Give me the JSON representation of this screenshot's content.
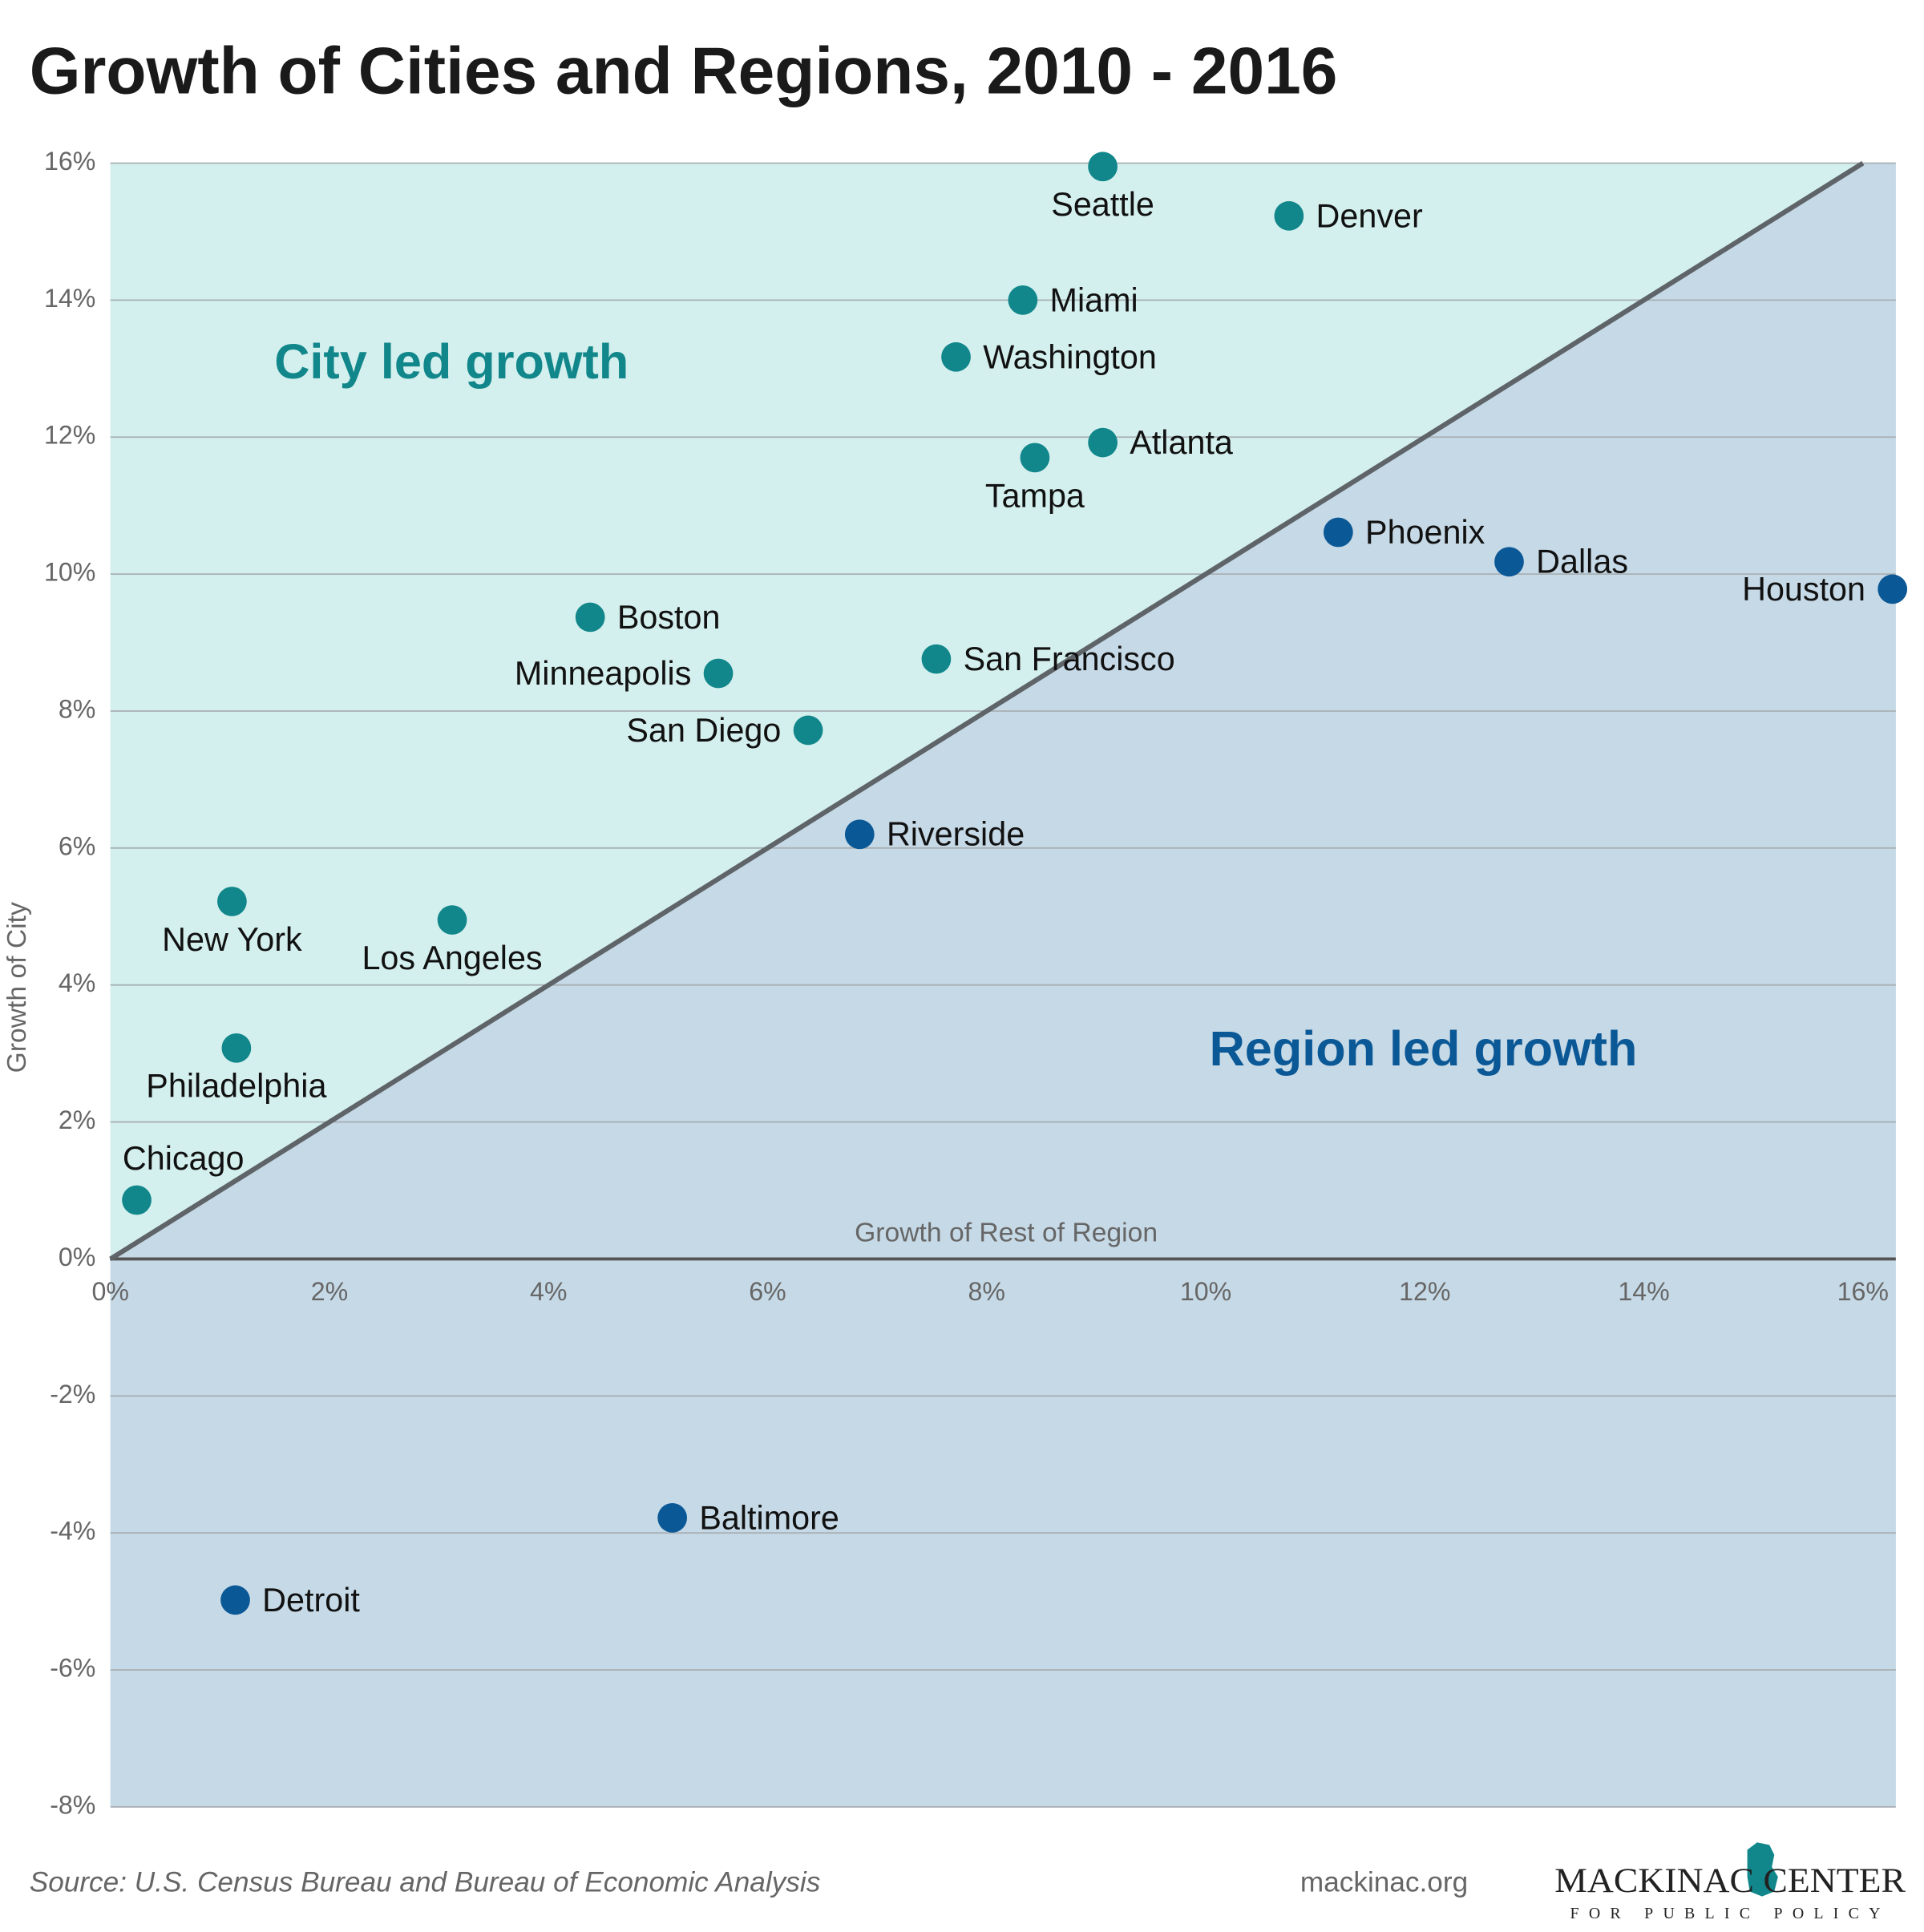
{
  "chart_data": {
    "type": "scatter",
    "title": "Growth of Cities and Regions, 2010 - 2016",
    "x_label": "Growth of Rest of Region",
    "y_label": "Growth of City",
    "source": "Source: U.S. Census Bureau and Bureau of Economic Analysis",
    "website": "mackinac.org",
    "logo": {
      "name": "MACKINAC CENTER",
      "tagline": "FOR PUBLIC POLICY"
    },
    "xlim": [
      0,
      16.3
    ],
    "ylim": [
      -8,
      16
    ],
    "xticks": [
      {
        "value": 0,
        "label": "0%"
      },
      {
        "value": 2,
        "label": "2%"
      },
      {
        "value": 4,
        "label": "4%"
      },
      {
        "value": 6,
        "label": "6%"
      },
      {
        "value": 8,
        "label": "8%"
      },
      {
        "value": 10,
        "label": "10%"
      },
      {
        "value": 12,
        "label": "12%"
      },
      {
        "value": 14,
        "label": "14%"
      },
      {
        "value": 16,
        "label": "16%"
      }
    ],
    "yticks": [
      {
        "value": -8,
        "label": "-8%"
      },
      {
        "value": -6,
        "label": "-6%"
      },
      {
        "value": -4,
        "label": "-4%"
      },
      {
        "value": -2,
        "label": "-2%"
      },
      {
        "value": 0,
        "label": "0%"
      },
      {
        "value": 2,
        "label": "2%"
      },
      {
        "value": 4,
        "label": "4%"
      },
      {
        "value": 6,
        "label": "6%"
      },
      {
        "value": 8,
        "label": "8%"
      },
      {
        "value": 10,
        "label": "10%"
      },
      {
        "value": 12,
        "label": "12%"
      },
      {
        "value": 14,
        "label": "14%"
      },
      {
        "value": 16,
        "label": "16%"
      }
    ],
    "grid": true,
    "series": [
      {
        "name": "City led growth",
        "color": "#11878b",
        "region_color": "#d4f0ee",
        "labels": [
          "Seattle",
          "Denver",
          "Miami",
          "Washington",
          "Atlanta",
          "Tampa",
          "Boston",
          "Minneapolis",
          "San Francisco",
          "San Diego",
          "New York",
          "Los Angeles",
          "Philadelphia",
          "Chicago"
        ],
        "x": [
          9.06,
          10.76,
          8.33,
          7.72,
          9.06,
          8.44,
          4.38,
          5.55,
          7.54,
          6.37,
          1.11,
          3.12,
          1.15,
          0.24
        ],
        "values": [
          15.95,
          15.23,
          14.0,
          13.17,
          11.92,
          11.7,
          9.37,
          8.55,
          8.76,
          7.72,
          5.22,
          4.95,
          3.08,
          0.86
        ]
      },
      {
        "name": "Region led growth",
        "color": "#0b5896",
        "region_color": "#c6d9e6",
        "labels": [
          "Phoenix",
          "Dallas",
          "Houston",
          "Riverside",
          "Baltimore",
          "Detroit"
        ],
        "x": [
          11.21,
          12.77,
          16.27,
          6.84,
          5.13,
          1.14
        ],
        "values": [
          10.61,
          10.18,
          9.78,
          6.2,
          -3.78,
          -4.98
        ]
      }
    ]
  }
}
